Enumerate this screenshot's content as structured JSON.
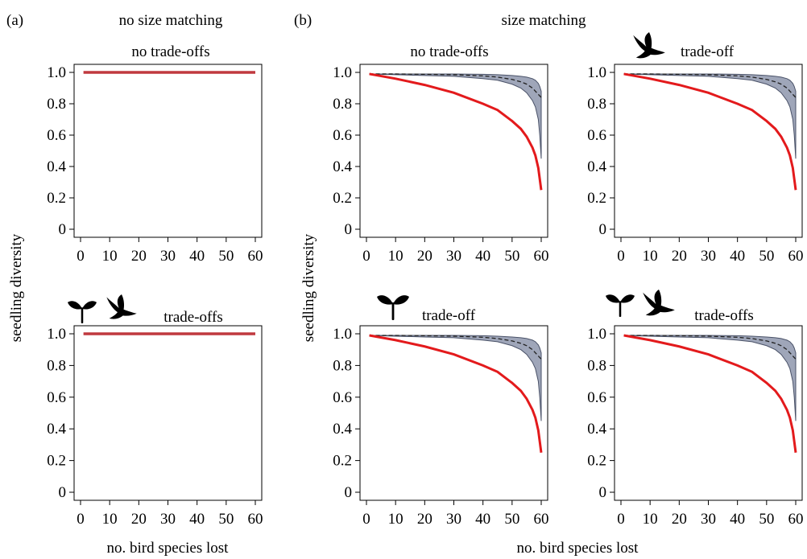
{
  "figure": {
    "panel_a_label": "(a)",
    "panel_b_label": "(b)",
    "panel_a_header": "no size matching",
    "panel_b_header": "size matching",
    "ylabel_a": "seedling diversity",
    "ylabel_b": "seedling diversity",
    "xlabel_a": "no. bird species lost",
    "xlabel_b": "no. bird species lost"
  },
  "chart_data": [
    {
      "type": "line",
      "title": "no trade-offs",
      "icons": [],
      "xlim": [
        0,
        60
      ],
      "ylim": [
        0,
        1
      ],
      "x_ticks": [
        0,
        10,
        20,
        30,
        40,
        50,
        60
      ],
      "y_ticks": [
        0,
        0.2,
        0.4,
        0.6,
        0.8,
        1.0
      ],
      "y_tick_labels": [
        "0",
        "0.2",
        "0.4",
        "0.6",
        "0.8",
        "1.0"
      ],
      "series": [
        {
          "style": "flat",
          "color": "#c0393f",
          "x": [
            1,
            60
          ],
          "y": [
            1.0,
            1.0
          ]
        }
      ]
    },
    {
      "type": "line",
      "title": "trade-offs",
      "icons": [
        "seedling-icon",
        "bird-icon"
      ],
      "xlim": [
        0,
        60
      ],
      "ylim": [
        0,
        1
      ],
      "x_ticks": [
        0,
        10,
        20,
        30,
        40,
        50,
        60
      ],
      "y_ticks": [
        0,
        0.2,
        0.4,
        0.6,
        0.8,
        1.0
      ],
      "y_tick_labels": [
        "0",
        "0.2",
        "0.4",
        "0.6",
        "0.8",
        "1.0"
      ],
      "series": [
        {
          "style": "flat",
          "color": "#c0393f",
          "x": [
            1,
            60
          ],
          "y": [
            1.0,
            1.0
          ]
        }
      ]
    },
    {
      "type": "line",
      "title": "no trade-offs",
      "icons": [],
      "xlim": [
        0,
        60
      ],
      "ylim": [
        0,
        1
      ],
      "x_ticks": [
        0,
        10,
        20,
        30,
        40,
        50,
        60
      ],
      "y_ticks": [
        0,
        0.2,
        0.4,
        0.6,
        0.8,
        1.0
      ],
      "y_tick_labels": [
        "0",
        "0.2",
        "0.4",
        "0.6",
        "0.8",
        "1.0"
      ],
      "band": {
        "x": [
          1,
          10,
          20,
          30,
          40,
          45,
          50,
          53,
          55,
          57,
          58,
          59,
          59.5,
          60
        ],
        "lower": [
          0.99,
          0.985,
          0.98,
          0.975,
          0.96,
          0.95,
          0.925,
          0.9,
          0.87,
          0.82,
          0.78,
          0.7,
          0.6,
          0.45
        ],
        "upper": [
          0.99,
          0.99,
          0.99,
          0.99,
          0.988,
          0.985,
          0.98,
          0.975,
          0.97,
          0.96,
          0.95,
          0.93,
          0.91,
          0.88
        ],
        "mean": [
          0.99,
          0.99,
          0.988,
          0.985,
          0.978,
          0.97,
          0.955,
          0.94,
          0.925,
          0.9,
          0.88,
          0.86,
          0.85,
          0.84
        ]
      },
      "series": [
        {
          "style": "red",
          "color": "#e31a1c",
          "x": [
            1,
            10,
            20,
            30,
            40,
            45,
            50,
            53,
            55,
            57,
            58,
            59,
            59.5,
            60
          ],
          "y": [
            0.99,
            0.96,
            0.92,
            0.87,
            0.8,
            0.76,
            0.69,
            0.64,
            0.59,
            0.52,
            0.47,
            0.39,
            0.32,
            0.25
          ]
        }
      ]
    },
    {
      "type": "line",
      "title": "trade-off",
      "icons": [
        "bird-icon"
      ],
      "xlim": [
        0,
        60
      ],
      "ylim": [
        0,
        1
      ],
      "x_ticks": [
        0,
        10,
        20,
        30,
        40,
        50,
        60
      ],
      "y_ticks": [
        0,
        0.2,
        0.4,
        0.6,
        0.8,
        1.0
      ],
      "y_tick_labels": [
        "0",
        "0.2",
        "0.4",
        "0.6",
        "0.8",
        "1.0"
      ],
      "band": {
        "x": [
          1,
          10,
          20,
          30,
          40,
          45,
          50,
          53,
          55,
          57,
          58,
          59,
          59.5,
          60
        ],
        "lower": [
          0.99,
          0.985,
          0.98,
          0.975,
          0.96,
          0.95,
          0.925,
          0.9,
          0.87,
          0.82,
          0.78,
          0.7,
          0.6,
          0.45
        ],
        "upper": [
          0.99,
          0.99,
          0.99,
          0.99,
          0.988,
          0.985,
          0.98,
          0.975,
          0.97,
          0.96,
          0.95,
          0.93,
          0.91,
          0.88
        ],
        "mean": [
          0.99,
          0.99,
          0.988,
          0.985,
          0.978,
          0.97,
          0.955,
          0.94,
          0.925,
          0.9,
          0.88,
          0.86,
          0.85,
          0.84
        ]
      },
      "series": [
        {
          "style": "red",
          "color": "#e31a1c",
          "x": [
            1,
            10,
            20,
            30,
            40,
            45,
            50,
            53,
            55,
            57,
            58,
            59,
            59.5,
            60
          ],
          "y": [
            0.99,
            0.96,
            0.92,
            0.87,
            0.8,
            0.76,
            0.69,
            0.64,
            0.59,
            0.52,
            0.47,
            0.39,
            0.32,
            0.25
          ]
        }
      ]
    },
    {
      "type": "line",
      "title": "trade-off",
      "icons": [
        "seedling-icon"
      ],
      "xlim": [
        0,
        60
      ],
      "ylim": [
        0,
        1
      ],
      "x_ticks": [
        0,
        10,
        20,
        30,
        40,
        50,
        60
      ],
      "y_ticks": [
        0,
        0.2,
        0.4,
        0.6,
        0.8,
        1.0
      ],
      "y_tick_labels": [
        "0",
        "0.2",
        "0.4",
        "0.6",
        "0.8",
        "1.0"
      ],
      "band": {
        "x": [
          1,
          10,
          20,
          30,
          40,
          45,
          50,
          53,
          55,
          57,
          58,
          59,
          59.5,
          60
        ],
        "lower": [
          0.99,
          0.985,
          0.98,
          0.975,
          0.96,
          0.95,
          0.925,
          0.9,
          0.87,
          0.82,
          0.78,
          0.7,
          0.6,
          0.45
        ],
        "upper": [
          0.99,
          0.99,
          0.99,
          0.99,
          0.988,
          0.985,
          0.98,
          0.975,
          0.97,
          0.96,
          0.95,
          0.93,
          0.91,
          0.88
        ],
        "mean": [
          0.99,
          0.99,
          0.988,
          0.985,
          0.978,
          0.97,
          0.955,
          0.94,
          0.925,
          0.9,
          0.88,
          0.86,
          0.85,
          0.84
        ]
      },
      "series": [
        {
          "style": "red",
          "color": "#e31a1c",
          "x": [
            1,
            10,
            20,
            30,
            40,
            45,
            50,
            53,
            55,
            57,
            58,
            59,
            59.5,
            60
          ],
          "y": [
            0.99,
            0.96,
            0.92,
            0.87,
            0.8,
            0.76,
            0.69,
            0.64,
            0.59,
            0.52,
            0.47,
            0.39,
            0.32,
            0.25
          ]
        }
      ]
    },
    {
      "type": "line",
      "title": "trade-offs",
      "icons": [
        "seedling-icon",
        "bird-icon"
      ],
      "xlim": [
        0,
        60
      ],
      "ylim": [
        0,
        1
      ],
      "x_ticks": [
        0,
        10,
        20,
        30,
        40,
        50,
        60
      ],
      "y_ticks": [
        0,
        0.2,
        0.4,
        0.6,
        0.8,
        1.0
      ],
      "y_tick_labels": [
        "0",
        "0.2",
        "0.4",
        "0.6",
        "0.8",
        "1.0"
      ],
      "band": {
        "x": [
          1,
          10,
          20,
          30,
          40,
          45,
          50,
          53,
          55,
          57,
          58,
          59,
          59.5,
          60
        ],
        "lower": [
          0.99,
          0.985,
          0.98,
          0.975,
          0.96,
          0.95,
          0.925,
          0.9,
          0.87,
          0.82,
          0.78,
          0.7,
          0.6,
          0.45
        ],
        "upper": [
          0.99,
          0.99,
          0.99,
          0.99,
          0.988,
          0.985,
          0.98,
          0.975,
          0.97,
          0.96,
          0.95,
          0.93,
          0.91,
          0.88
        ],
        "mean": [
          0.99,
          0.99,
          0.988,
          0.985,
          0.978,
          0.97,
          0.955,
          0.94,
          0.925,
          0.9,
          0.88,
          0.86,
          0.85,
          0.84
        ]
      },
      "series": [
        {
          "style": "red",
          "color": "#e31a1c",
          "x": [
            1,
            10,
            20,
            30,
            40,
            45,
            50,
            53,
            55,
            57,
            58,
            59,
            59.5,
            60
          ],
          "y": [
            0.99,
            0.96,
            0.92,
            0.87,
            0.8,
            0.76,
            0.69,
            0.64,
            0.59,
            0.52,
            0.47,
            0.39,
            0.32,
            0.25
          ]
        }
      ]
    }
  ]
}
